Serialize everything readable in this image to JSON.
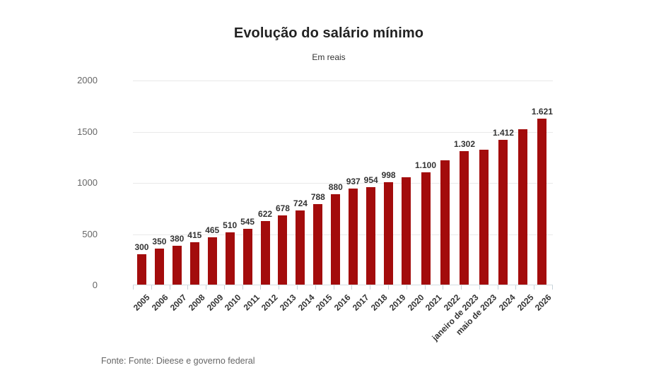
{
  "chart": {
    "title": "Evolução do salário mínimo",
    "subtitle": "Em reais"
  },
  "chart_data": {
    "type": "bar",
    "title": "Evolução do salário mínimo",
    "subtitle": "Em reais",
    "categories": [
      "2005",
      "2006",
      "2007",
      "2008",
      "2009",
      "2010",
      "2011",
      "2012",
      "2013",
      "2014",
      "2015",
      "2016",
      "2017",
      "2018",
      "2019",
      "2020",
      "2021",
      "2022",
      "janeiro de 2023",
      "maio de 2023",
      "2024",
      "2025",
      "2026"
    ],
    "values": [
      300,
      350,
      380,
      415,
      465,
      510,
      545,
      622,
      678,
      724,
      788,
      880,
      937,
      954,
      998,
      1045,
      1100,
      1212,
      1302,
      1320,
      1412,
      1518,
      1621
    ],
    "bar_labels": [
      "300",
      "350",
      "380",
      "415",
      "465",
      "510",
      "545",
      "622",
      "678",
      "724",
      "788",
      "880",
      "937",
      "954",
      "998",
      "",
      "1.100",
      "",
      "1.302",
      "",
      "1.412",
      "",
      "1.621"
    ],
    "xlabel": "",
    "ylabel": "",
    "ylim": [
      0,
      2000
    ],
    "yticks": [
      0,
      500,
      1000,
      1500,
      2000
    ],
    "grid": "horizontal",
    "legend": "none",
    "bar_color": "#a30c0c"
  },
  "colors": {
    "bar": "#a30c0c",
    "value_label": "#333333",
    "axis_label": "#666666",
    "gridline": "#e9e9e9",
    "tick_line": "#c6d1d9"
  },
  "footer": {
    "source": "Fonte: Fonte: Dieese e governo federal"
  }
}
